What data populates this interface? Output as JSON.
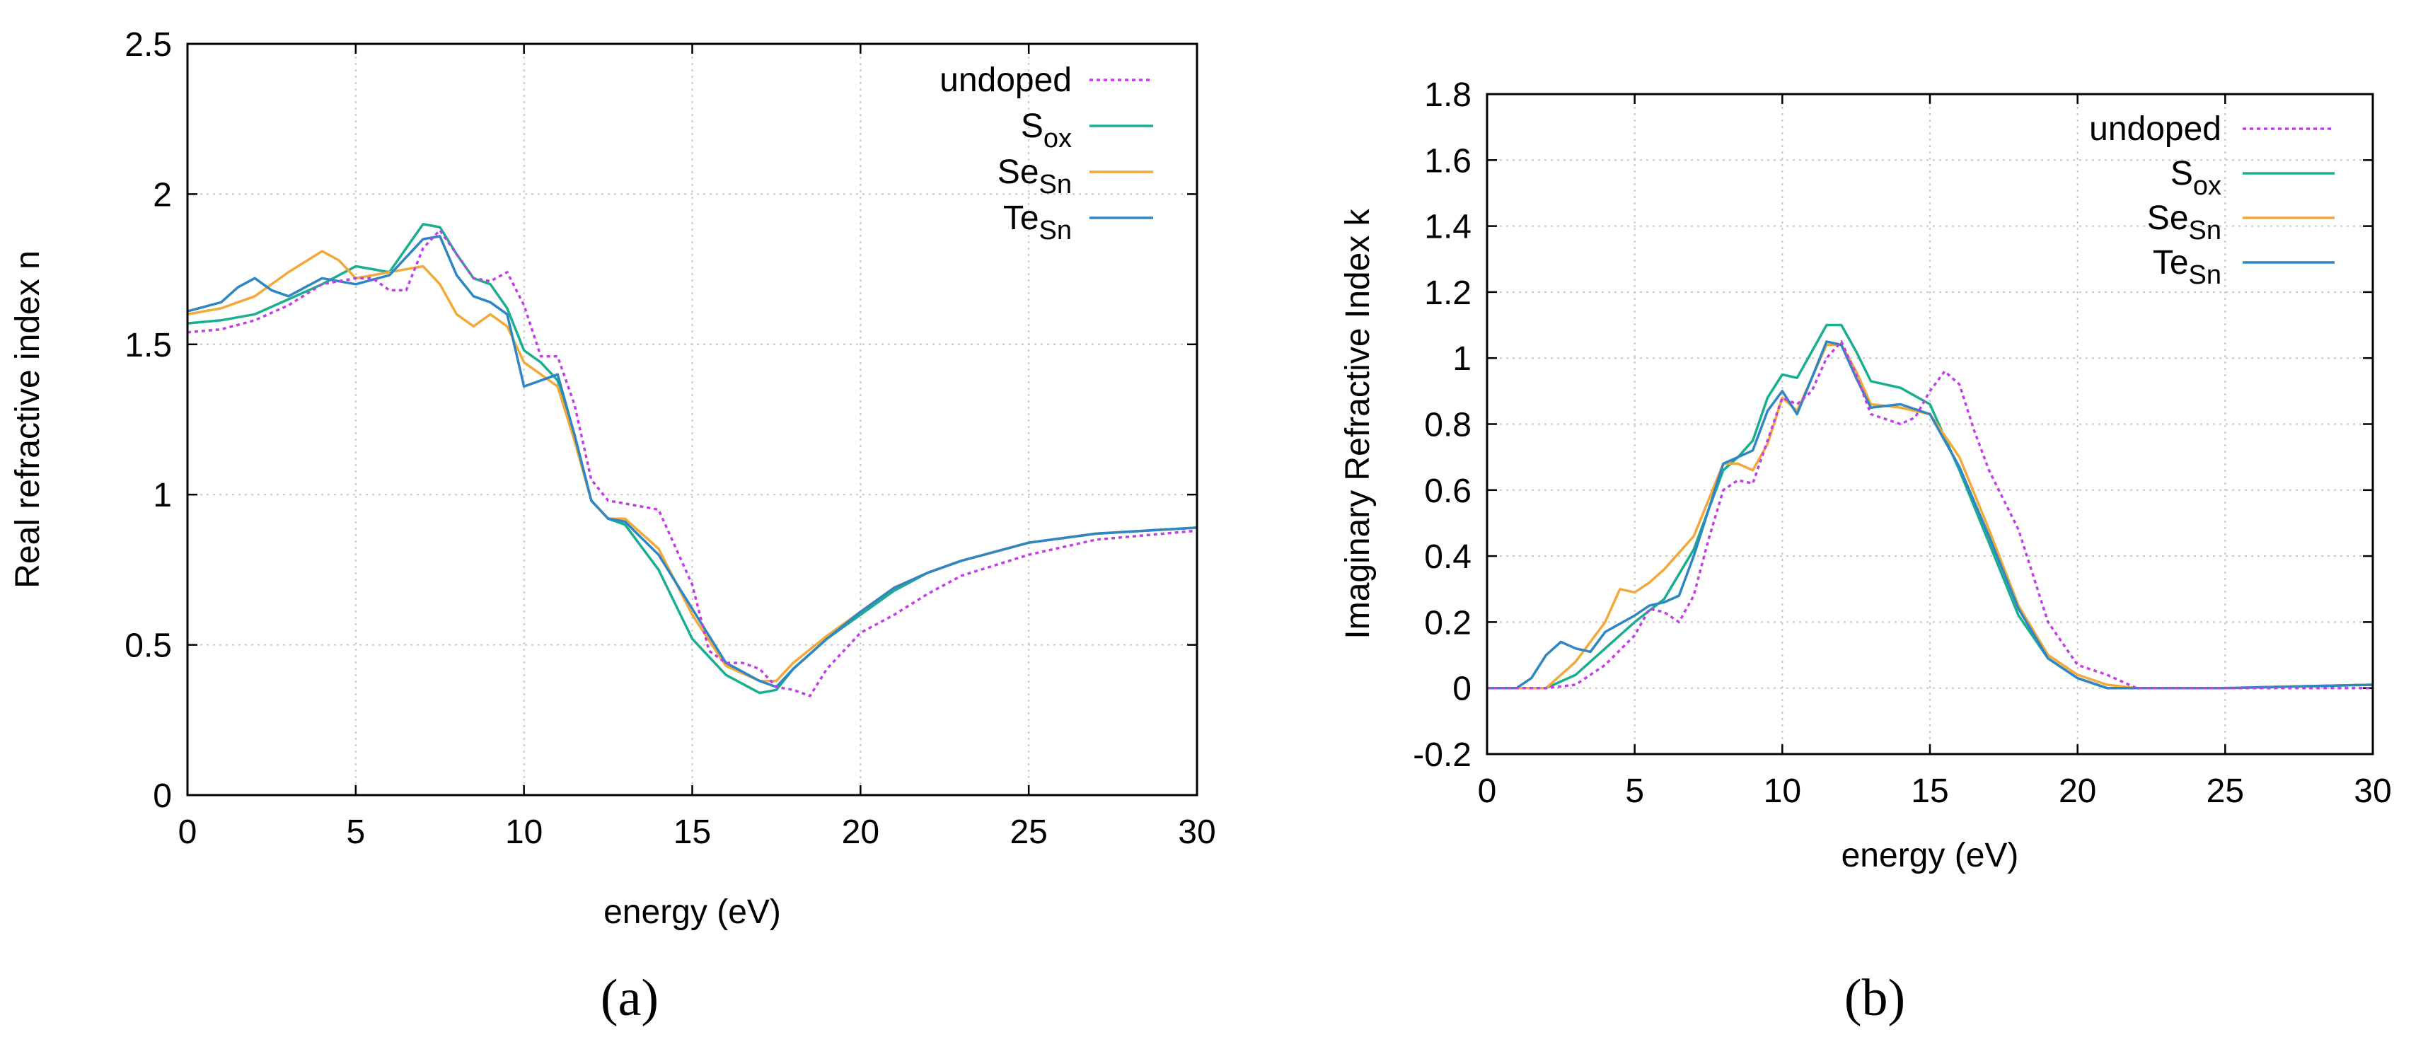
{
  "colors": {
    "undoped": "#c23fe6",
    "S_ox": "#1aae90",
    "Se_Sn": "#f2a93a",
    "Te_Sn": "#2f86c2"
  },
  "chart_data": [
    {
      "type": "line",
      "panel": "a",
      "caption": "(a)",
      "xlabel": "energy (eV)",
      "ylabel": "Real refractive index n",
      "xlim": [
        0,
        30
      ],
      "ylim": [
        0,
        2.5
      ],
      "xticks": [
        0,
        5,
        10,
        15,
        20,
        25,
        30
      ],
      "yticks": [
        0,
        0.5,
        1,
        1.5,
        2,
        2.5
      ],
      "ytick_labels": [
        "0",
        "0.5",
        "1",
        "1.5",
        "2",
        "2.5"
      ],
      "grid": true,
      "legend_position": "top-right",
      "series": [
        {
          "name": "undoped",
          "key": "undoped",
          "sub": "",
          "dashed": true,
          "x": [
            0,
            1,
            2,
            3,
            4,
            5,
            5.5,
            6,
            6.5,
            7,
            7.5,
            8,
            8.5,
            9,
            9.5,
            10,
            10.5,
            11,
            11.5,
            12,
            12.5,
            13,
            14,
            15,
            15.5,
            16,
            16.5,
            17,
            17.5,
            18,
            18.5,
            19,
            20,
            21,
            22,
            23,
            25,
            27,
            30
          ],
          "y": [
            1.54,
            1.55,
            1.58,
            1.63,
            1.7,
            1.72,
            1.72,
            1.68,
            1.68,
            1.82,
            1.88,
            1.8,
            1.72,
            1.71,
            1.74,
            1.63,
            1.46,
            1.46,
            1.3,
            1.05,
            0.98,
            0.97,
            0.95,
            0.7,
            0.48,
            0.44,
            0.44,
            0.42,
            0.36,
            0.35,
            0.33,
            0.42,
            0.54,
            0.6,
            0.67,
            0.73,
            0.8,
            0.85,
            0.88
          ]
        },
        {
          "name": "S",
          "key": "S_ox",
          "sub": "ox",
          "dashed": false,
          "x": [
            0,
            1,
            2,
            3,
            4,
            5,
            6,
            7,
            7.5,
            8,
            8.5,
            9,
            9.5,
            10,
            10.5,
            11,
            11.5,
            12,
            12.5,
            13,
            14,
            15,
            16,
            17,
            17.5,
            18,
            19,
            20,
            21,
            22,
            23,
            25,
            27,
            30
          ],
          "y": [
            1.57,
            1.58,
            1.6,
            1.65,
            1.7,
            1.76,
            1.74,
            1.9,
            1.89,
            1.8,
            1.72,
            1.7,
            1.62,
            1.48,
            1.44,
            1.38,
            1.2,
            0.98,
            0.92,
            0.9,
            0.75,
            0.52,
            0.4,
            0.34,
            0.35,
            0.42,
            0.52,
            0.6,
            0.68,
            0.74,
            0.78,
            0.84,
            0.87,
            0.89
          ]
        },
        {
          "name": "Se",
          "key": "Se_Sn",
          "sub": "Sn",
          "dashed": false,
          "x": [
            0,
            1,
            2,
            3,
            4,
            4.5,
            5,
            6,
            7,
            7.5,
            8,
            8.5,
            9,
            9.5,
            10,
            10.5,
            11,
            11.5,
            12,
            12.5,
            13,
            14,
            15,
            16,
            17,
            17.5,
            18,
            19,
            20,
            21,
            22,
            23,
            25,
            27,
            30
          ],
          "y": [
            1.6,
            1.62,
            1.66,
            1.74,
            1.81,
            1.78,
            1.72,
            1.74,
            1.76,
            1.7,
            1.6,
            1.56,
            1.6,
            1.56,
            1.44,
            1.4,
            1.36,
            1.18,
            0.98,
            0.92,
            0.92,
            0.82,
            0.6,
            0.43,
            0.38,
            0.38,
            0.44,
            0.53,
            0.61,
            0.69,
            0.74,
            0.78,
            0.84,
            0.87,
            0.89
          ]
        },
        {
          "name": "Te",
          "key": "Te_Sn",
          "sub": "Sn",
          "dashed": false,
          "x": [
            0,
            1,
            1.5,
            2,
            2.5,
            3,
            4,
            5,
            6,
            7,
            7.5,
            8,
            8.5,
            9,
            9.5,
            10,
            10.5,
            11,
            11.5,
            12,
            12.5,
            13,
            14,
            15,
            16,
            17,
            17.5,
            18,
            19,
            20,
            21,
            22,
            23,
            25,
            27,
            30
          ],
          "y": [
            1.61,
            1.64,
            1.69,
            1.72,
            1.68,
            1.66,
            1.72,
            1.7,
            1.73,
            1.85,
            1.86,
            1.73,
            1.66,
            1.64,
            1.6,
            1.36,
            1.38,
            1.4,
            1.2,
            0.98,
            0.92,
            0.91,
            0.8,
            0.62,
            0.44,
            0.38,
            0.36,
            0.42,
            0.52,
            0.61,
            0.69,
            0.74,
            0.78,
            0.84,
            0.87,
            0.89
          ]
        }
      ]
    },
    {
      "type": "line",
      "panel": "b",
      "caption": "(b)",
      "xlabel": "energy (eV)",
      "ylabel": "Imaginary Refractive Index k",
      "xlim": [
        0,
        30
      ],
      "ylim": [
        -0.2,
        1.8
      ],
      "xticks": [
        0,
        5,
        10,
        15,
        20,
        25,
        30
      ],
      "yticks": [
        -0.2,
        0,
        0.2,
        0.4,
        0.6,
        0.8,
        1,
        1.2,
        1.4,
        1.6,
        1.8
      ],
      "ytick_labels": [
        "-0.2",
        "0",
        "0.2",
        "0.4",
        "0.6",
        "0.8",
        "1",
        "1.2",
        "1.4",
        "1.6",
        "1.8"
      ],
      "grid": true,
      "legend_position": "top-right",
      "series": [
        {
          "name": "undoped",
          "key": "undoped",
          "sub": "",
          "dashed": true,
          "x": [
            0,
            2,
            3,
            4,
            5,
            5.5,
            6,
            6.5,
            7,
            7.5,
            8,
            8.5,
            9,
            10,
            10.5,
            11,
            11.5,
            12,
            12.5,
            13,
            14,
            14.5,
            15,
            15.5,
            16,
            16.5,
            17,
            18,
            19,
            20,
            21,
            22,
            25,
            30
          ],
          "y": [
            0,
            0,
            0.01,
            0.07,
            0.16,
            0.24,
            0.23,
            0.2,
            0.28,
            0.45,
            0.6,
            0.63,
            0.62,
            0.88,
            0.86,
            0.9,
            1.0,
            1.05,
            0.95,
            0.83,
            0.8,
            0.82,
            0.9,
            0.96,
            0.92,
            0.78,
            0.66,
            0.48,
            0.2,
            0.07,
            0.04,
            0,
            0,
            0
          ]
        },
        {
          "name": "S",
          "key": "S_ox",
          "sub": "ox",
          "dashed": false,
          "x": [
            0,
            2,
            3,
            4,
            5,
            6,
            7,
            8,
            8.5,
            9,
            9.5,
            10,
            10.5,
            11,
            11.5,
            12,
            12.5,
            13,
            14,
            15,
            16,
            17,
            18,
            19,
            20,
            21,
            22,
            25,
            30
          ],
          "y": [
            0,
            0,
            0.04,
            0.12,
            0.2,
            0.27,
            0.42,
            0.66,
            0.7,
            0.75,
            0.88,
            0.95,
            0.94,
            1.02,
            1.1,
            1.1,
            1.02,
            0.93,
            0.91,
            0.86,
            0.66,
            0.44,
            0.22,
            0.09,
            0.03,
            0,
            0,
            0,
            0.01
          ]
        },
        {
          "name": "Se",
          "key": "Se_Sn",
          "sub": "Sn",
          "dashed": false,
          "x": [
            0,
            2,
            3,
            4,
            4.5,
            5,
            5.5,
            6,
            7,
            8,
            8.5,
            9,
            9.5,
            10,
            10.5,
            11,
            11.5,
            12,
            12.5,
            13,
            14,
            15,
            16,
            17,
            18,
            19,
            20,
            21,
            22,
            25,
            30
          ],
          "y": [
            0,
            0,
            0.08,
            0.2,
            0.3,
            0.29,
            0.32,
            0.36,
            0.46,
            0.68,
            0.68,
            0.66,
            0.74,
            0.88,
            0.84,
            0.94,
            1.04,
            1.04,
            0.96,
            0.86,
            0.85,
            0.83,
            0.7,
            0.48,
            0.25,
            0.1,
            0.04,
            0.01,
            0,
            0,
            0.01
          ]
        },
        {
          "name": "Te",
          "key": "Te_Sn",
          "sub": "Sn",
          "dashed": false,
          "x": [
            0,
            1,
            1.5,
            2,
            2.5,
            3,
            3.5,
            4,
            5,
            5.5,
            6,
            6.5,
            7,
            8,
            8.5,
            9,
            9.5,
            10,
            10.5,
            11,
            11.5,
            12,
            12.5,
            13,
            14,
            15,
            16,
            17,
            18,
            19,
            20,
            21,
            22,
            25,
            30
          ],
          "y": [
            0,
            0,
            0.03,
            0.1,
            0.14,
            0.12,
            0.11,
            0.17,
            0.22,
            0.25,
            0.26,
            0.28,
            0.4,
            0.68,
            0.7,
            0.72,
            0.84,
            0.9,
            0.83,
            0.94,
            1.05,
            1.04,
            0.94,
            0.85,
            0.86,
            0.83,
            0.67,
            0.46,
            0.24,
            0.09,
            0.03,
            0,
            0,
            0,
            0.01
          ]
        }
      ]
    }
  ]
}
